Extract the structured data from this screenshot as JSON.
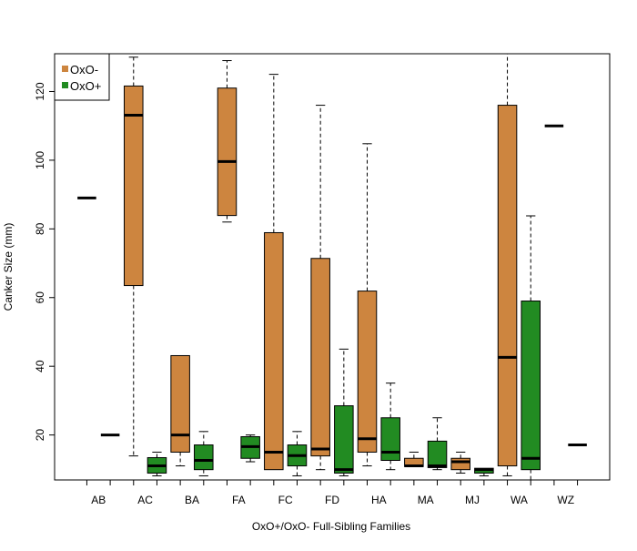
{
  "chart_data": {
    "type": "boxplot",
    "title": "",
    "xlabel": "OxO+/OxO- Full-Sibling Families",
    "ylabel": "Canker Size (mm)",
    "ylim": [
      6.9,
      131
    ],
    "yticks": [
      20,
      40,
      60,
      80,
      100,
      120
    ],
    "categories": [
      "AB",
      "AC",
      "BA",
      "FA",
      "FC",
      "FD",
      "HA",
      "MA",
      "MJ",
      "WA",
      "WZ"
    ],
    "legend": {
      "placement": "top-left",
      "entries": [
        {
          "label": "OxO-",
          "color": "#CD853F"
        },
        {
          "label": "OxO+",
          "color": "#228B22"
        }
      ]
    },
    "series": [
      {
        "name": "OxO-",
        "color": "#CD853F",
        "boxes": [
          {
            "low": 89,
            "q1": 89,
            "median": 89,
            "q3": 89,
            "high": 89
          },
          {
            "low": 13.9,
            "q1": 63.5,
            "median": 113.1,
            "q3": 121.6,
            "high": 130
          },
          {
            "low": 11,
            "q1": 15,
            "median": 20,
            "q3": 43.1,
            "high": 43.1
          },
          {
            "low": 82,
            "q1": 83.9,
            "median": 99.6,
            "q3": 121,
            "high": 129
          },
          {
            "low": 9.9,
            "q1": 9.9,
            "median": 15,
            "q3": 78.9,
            "high": 125
          },
          {
            "low": 9.9,
            "q1": 13.9,
            "median": 15.9,
            "q3": 71.4,
            "high": 116
          },
          {
            "low": 11,
            "q1": 15,
            "median": 18.9,
            "q3": 61.9,
            "high": 104.8
          },
          {
            "low": 10.8,
            "q1": 10.8,
            "median": 11,
            "q3": 13.2,
            "high": 15
          },
          {
            "low": 8.9,
            "q1": 9.9,
            "median": 12.2,
            "q3": 13.2,
            "high": 15
          },
          {
            "low": 8.1,
            "q1": 11,
            "median": 42.6,
            "q3": 116,
            "high": 140
          },
          {
            "low": 110,
            "q1": 110,
            "median": 110,
            "q3": 110,
            "high": 110
          }
        ]
      },
      {
        "name": "OxO+",
        "color": "#228B22",
        "boxes": [
          {
            "low": 20,
            "q1": 20,
            "median": 20,
            "q3": 20,
            "high": 20
          },
          {
            "low": 8.1,
            "q1": 8.9,
            "median": 11,
            "q3": 13.4,
            "high": 15
          },
          {
            "low": 8.1,
            "q1": 9.9,
            "median": 12.6,
            "q3": 17.1,
            "high": 21
          },
          {
            "low": 12.2,
            "q1": 13.2,
            "median": 16.6,
            "q3": 19.5,
            "high": 20
          },
          {
            "low": 8.1,
            "q1": 11,
            "median": 14,
            "q3": 17.1,
            "high": 21
          },
          {
            "low": 8.1,
            "q1": 8.9,
            "median": 9.9,
            "q3": 28.5,
            "high": 45
          },
          {
            "low": 9.9,
            "q1": 12.6,
            "median": 15,
            "q3": 25,
            "high": 35.1
          },
          {
            "low": 9.9,
            "q1": 10.5,
            "median": 11,
            "q3": 18.2,
            "high": 25
          },
          {
            "low": 8.1,
            "q1": 8.9,
            "median": 9.9,
            "q3": 10.3,
            "high": 10.3
          },
          {
            "low": 5,
            "q1": 9.9,
            "median": 13.2,
            "q3": 59,
            "high": 83.8
          },
          {
            "low": 17.1,
            "q1": 17.1,
            "median": 17.1,
            "q3": 17.1,
            "high": 17.1
          }
        ]
      }
    ]
  }
}
